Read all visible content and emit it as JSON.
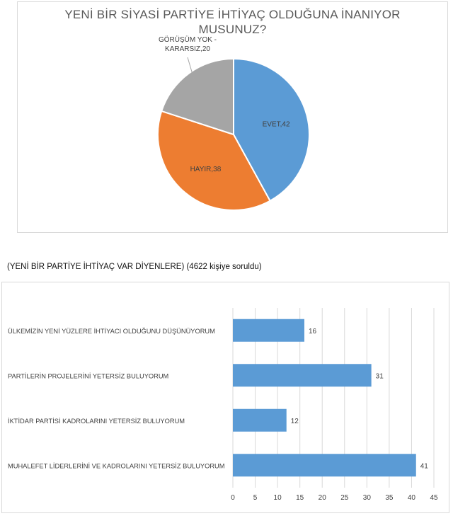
{
  "section_heading": "(YENİ BİR PARTİYE İHTİYAÇ VAR DİYENLERE)  (4622 kişiye soruldu)",
  "chart_data": [
    {
      "type": "pie",
      "title_lines": [
        "YENİ BİR SİYASİ PARTİYE İHTİYAÇ OLDUĞUNA İNANIYOR",
        "MUSUNUZ?"
      ],
      "slices": [
        {
          "label": "EVET",
          "value": 42,
          "color": "#5b9bd5",
          "data_label": "EVET,42"
        },
        {
          "label": "HAYIR",
          "value": 38,
          "color": "#ed7d31",
          "data_label": "HAYIR,38"
        },
        {
          "label": "GÖRÜŞÜM YOK - KARARSIZ",
          "value": 20,
          "color": "#a5a5a5",
          "data_label_lines": [
            "GÖRÜŞÜM YOK -",
            "KARARSIZ,20"
          ]
        }
      ],
      "legend": "none"
    },
    {
      "type": "bar",
      "orientation": "horizontal",
      "categories": [
        "ÜLKEMİZİN YENİ YÜZLERE İHTİYACI OLDUĞUNU DÜŞÜNÜYORUM",
        "PARTİLERİN PROJELERİNİ  YETERSİZ BULUYORUM",
        "İKTİDAR PARTİSİ KADROLARINI YETERSİZ BULUYORUM",
        "MUHALEFET LİDERLERİNİ VE KADROLARINI YETERSİZ BULUYORUM"
      ],
      "values": [
        16,
        31,
        12,
        41
      ],
      "bar_color": "#5b9bd5",
      "xlim": [
        0,
        45
      ],
      "xticks": [
        0,
        5,
        10,
        15,
        20,
        25,
        30,
        35,
        40,
        45
      ],
      "grid": "vertical"
    }
  ]
}
